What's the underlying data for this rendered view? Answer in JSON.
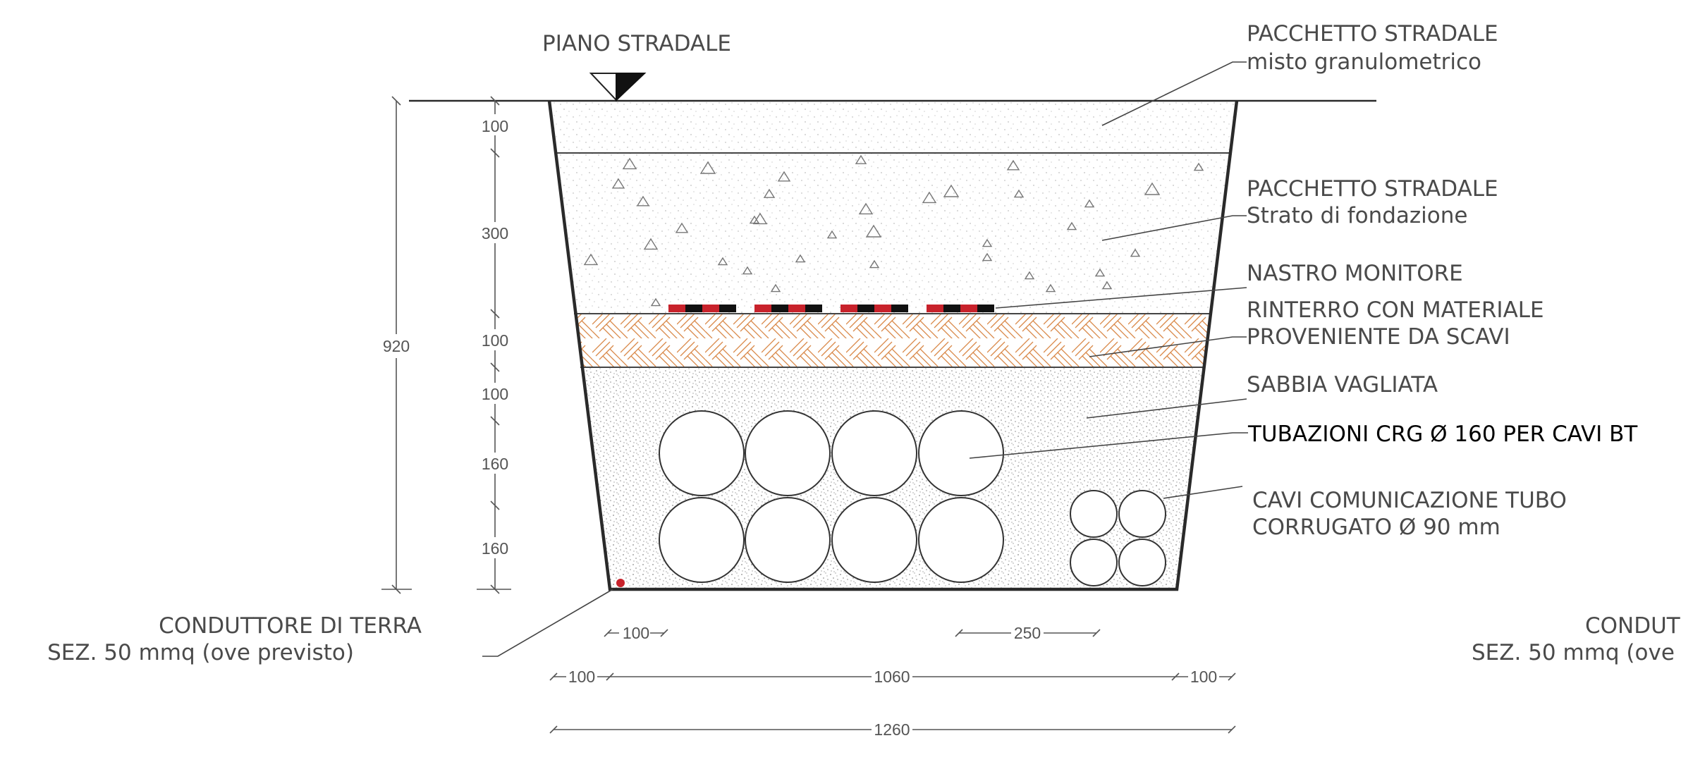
{
  "labels": {
    "piano_stradale": "PIANO STRADALE",
    "pacchetto1_title": "PACCHETTO STRADALE",
    "pacchetto1_sub": "misto granulometrico",
    "pacchetto2_title": "PACCHETTO STRADALE",
    "pacchetto2_sub": "Strato di fondazione",
    "nastro": "NASTRO MONITORE",
    "rinterro1": "RINTERRO CON MATERIALE",
    "rinterro2": "PROVENIENTE DA SCAVI",
    "sabbia": "SABBIA VAGLIATA",
    "tubazioni": "TUBAZIONI CRG Ø  160 PER CAVI BT",
    "cavi1": "CAVI COMUNICAZIONE TUBO",
    "cavi2": "CORRUGATO Ø  90 mm",
    "conduttore1": "CONDUTTORE DI TERRA",
    "conduttore2": "SEZ. 50 mmq (ove previsto)",
    "conduttore1_dup": "CONDUT",
    "conduttore2_dup": "SEZ. 50 mmq (ove"
  },
  "dimensions": {
    "total_depth": "920",
    "layers": [
      "100",
      "300",
      "100",
      "100",
      "160",
      "160"
    ],
    "ground_offset": "100",
    "pipe_spacing": "250",
    "side_left": "100",
    "inner_width": "1060",
    "side_right": "100",
    "total_width": "1260"
  },
  "colors": {
    "line": "#2a2a2a",
    "text": "#4a4a4a",
    "fill_hatch": "#d9894a",
    "tape_red": "#c8222b",
    "tape_black": "#111111",
    "ground_dot": "#c8222b"
  }
}
